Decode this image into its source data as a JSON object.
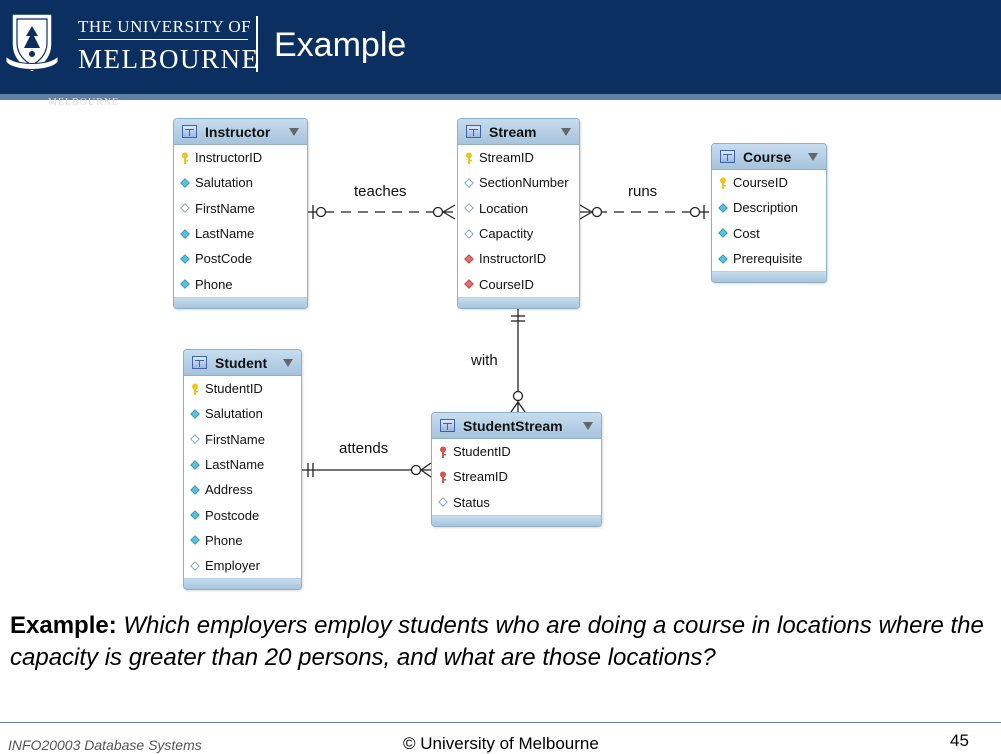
{
  "header": {
    "university_line1": "THE UNIVERSITY OF",
    "university_line2": "MELBOURNE",
    "title": "Example",
    "ghost_text": "MELBOURNE",
    "background_color": "#0c2f61"
  },
  "entities": {
    "instructor": {
      "name": "Instructor",
      "attributes": [
        {
          "name": "InstructorID",
          "key": "primary"
        },
        {
          "name": "Salutation",
          "key": "filled"
        },
        {
          "name": "FirstName",
          "key": "empty"
        },
        {
          "name": "LastName",
          "key": "filled"
        },
        {
          "name": "PostCode",
          "key": "filled"
        },
        {
          "name": "Phone",
          "key": "filled"
        }
      ]
    },
    "stream": {
      "name": "Stream",
      "attributes": [
        {
          "name": "StreamID",
          "key": "primary"
        },
        {
          "name": "SectionNumber",
          "key": "empty"
        },
        {
          "name": "Location",
          "key": "empty"
        },
        {
          "name": "Capactity",
          "key": "empty"
        },
        {
          "name": "InstructorID",
          "key": "foreign"
        },
        {
          "name": "CourseID",
          "key": "foreign"
        }
      ]
    },
    "course": {
      "name": "Course",
      "attributes": [
        {
          "name": "CourseID",
          "key": "primary"
        },
        {
          "name": "Description",
          "key": "filled"
        },
        {
          "name": "Cost",
          "key": "filled"
        },
        {
          "name": "Prerequisite",
          "key": "filled"
        }
      ]
    },
    "student": {
      "name": "Student",
      "attributes": [
        {
          "name": "StudentID",
          "key": "primary"
        },
        {
          "name": "Salutation",
          "key": "filled"
        },
        {
          "name": "FirstName",
          "key": "empty"
        },
        {
          "name": "LastName",
          "key": "filled"
        },
        {
          "name": "Address",
          "key": "filled"
        },
        {
          "name": "Postcode",
          "key": "filled"
        },
        {
          "name": "Phone",
          "key": "filled"
        },
        {
          "name": "Employer",
          "key": "empty"
        }
      ]
    },
    "studentstream": {
      "name": "StudentStream",
      "attributes": [
        {
          "name": "StudentID",
          "key": "primary-foreign"
        },
        {
          "name": "StreamID",
          "key": "primary-foreign"
        },
        {
          "name": "Status",
          "key": "empty"
        }
      ]
    }
  },
  "relationships": {
    "teaches": "teaches",
    "runs": "runs",
    "with": "with",
    "attends": "attends"
  },
  "question": {
    "lead": "Example:",
    "text": "Which employers employ students who are doing a course in locations where the capacity is greater than 20 persons, and what are those locations?"
  },
  "footer": {
    "course": "INFO20003 Database Systems",
    "copyright": "© University of Melbourne",
    "page_number": "45"
  }
}
